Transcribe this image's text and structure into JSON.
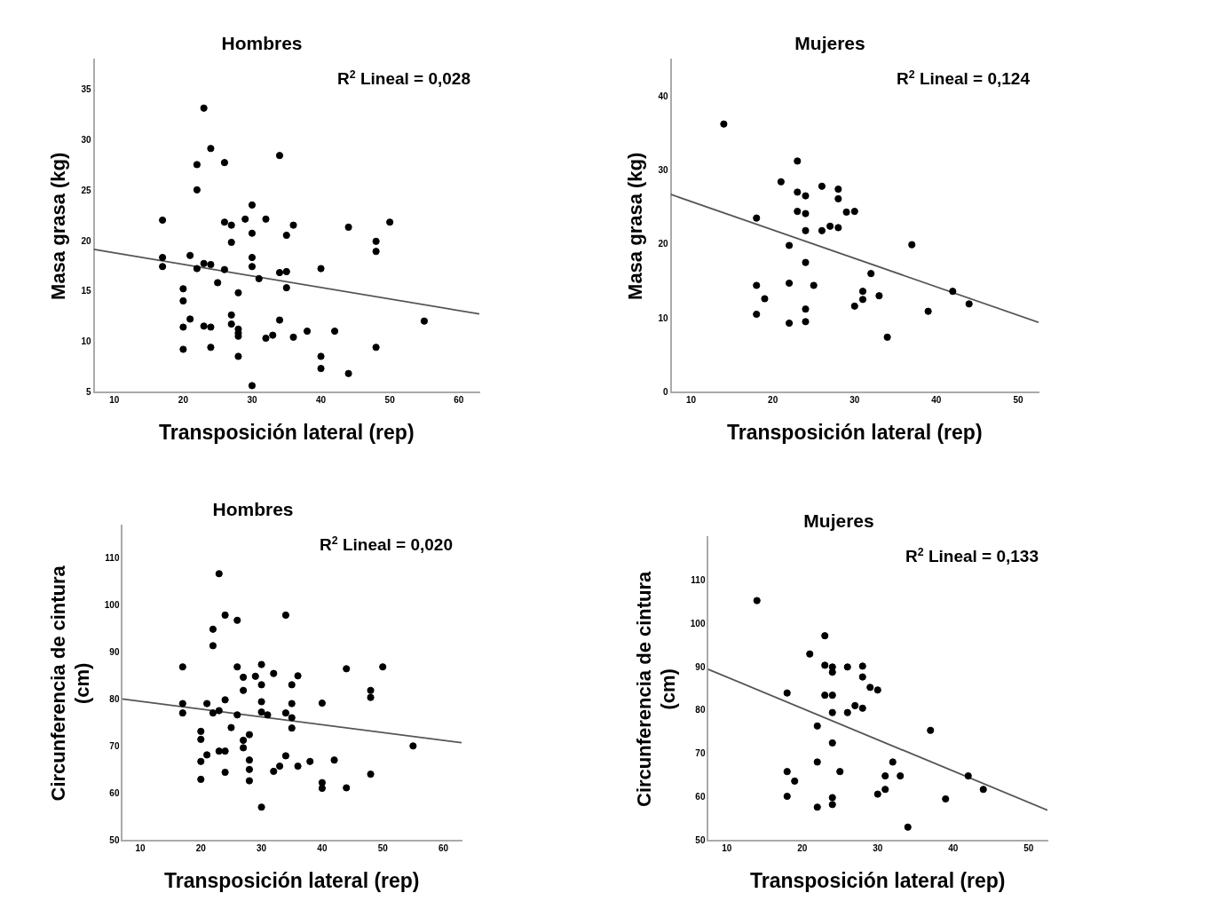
{
  "chart_data": [
    {
      "type": "scatter",
      "title": "Hombres",
      "xlabel": "Transposición lateral (rep)",
      "ylabel": "Masa grasa (kg)",
      "annotations": [
        "R$^{2}$ Lineal = 0,028"
      ],
      "xlim": [
        7,
        63
      ],
      "xticks": [
        10,
        20,
        30,
        40,
        50,
        60
      ],
      "ylim": [
        5,
        38
      ],
      "yticks": [
        5,
        10,
        15,
        20,
        25,
        30,
        35
      ],
      "grid": false,
      "legend": false,
      "series": [
        {
          "marker": "circle",
          "color": "#000000",
          "x": [
            17,
            17,
            17,
            20,
            20,
            20,
            20,
            21,
            21,
            22,
            22,
            22,
            23,
            23,
            23,
            24,
            24,
            24,
            24,
            25,
            26,
            26,
            26,
            27,
            27,
            27,
            27,
            28,
            28,
            28,
            28,
            28,
            29,
            30,
            30,
            30,
            30,
            30,
            31,
            32,
            32,
            33,
            34,
            34,
            34,
            35,
            35,
            35,
            36,
            36,
            38,
            40,
            40,
            40,
            42,
            44,
            44,
            48,
            48,
            48,
            50,
            55
          ],
          "values": [
            22.1,
            18.4,
            17.5,
            15.3,
            14.1,
            11.5,
            9.3,
            18.6,
            12.3,
            27.6,
            25.1,
            17.3,
            33.2,
            17.8,
            11.6,
            29.2,
            17.7,
            11.5,
            9.5,
            15.9,
            27.8,
            21.9,
            17.2,
            21.6,
            19.9,
            12.7,
            11.8,
            14.9,
            11.3,
            10.9,
            10.6,
            8.6,
            22.2,
            23.6,
            20.8,
            18.4,
            17.5,
            5.7,
            16.3,
            22.2,
            10.4,
            10.7,
            28.5,
            16.9,
            12.2,
            20.6,
            17.0,
            15.4,
            21.6,
            10.5,
            11.1,
            17.3,
            8.6,
            7.4,
            11.1,
            21.4,
            6.9,
            20.0,
            19.0,
            9.5,
            21.9,
            12.1
          ]
        },
        {
          "type": "line",
          "marker": "none",
          "color": "#555555",
          "x": [
            7,
            63
          ],
          "values": [
            19.2,
            12.8
          ]
        }
      ]
    },
    {
      "type": "scatter",
      "title": "Mujeres",
      "xlabel": "Transposición lateral (rep)",
      "ylabel": "Masa grasa (kg)",
      "annotations": [
        "R$^{2}$ Lineal = 0,124"
      ],
      "xlim": [
        7.5,
        52.5
      ],
      "xticks": [
        10,
        20,
        30,
        40,
        50
      ],
      "ylim": [
        0,
        45
      ],
      "yticks": [
        0,
        10,
        20,
        30,
        40
      ],
      "grid": false,
      "legend": false,
      "series": [
        {
          "marker": "circle",
          "color": "#000000",
          "x": [
            14,
            18,
            18,
            18,
            19,
            21,
            22,
            22,
            22,
            23,
            23,
            23,
            24,
            24,
            24,
            24,
            24,
            24,
            25,
            26,
            26,
            27,
            28,
            28,
            28,
            29,
            30,
            30,
            31,
            31,
            32,
            33,
            34,
            37,
            39,
            42,
            44
          ],
          "values": [
            36.3,
            23.6,
            14.5,
            10.6,
            12.7,
            28.5,
            19.9,
            14.8,
            9.4,
            31.3,
            27.1,
            24.5,
            26.6,
            24.2,
            21.9,
            17.6,
            11.3,
            9.6,
            14.5,
            27.9,
            21.9,
            22.5,
            27.5,
            26.2,
            22.3,
            24.4,
            24.5,
            11.7,
            13.7,
            12.6,
            16.1,
            13.1,
            7.5,
            20.0,
            11.0,
            13.7,
            12.0
          ]
        },
        {
          "type": "line",
          "marker": "none",
          "color": "#555555",
          "x": [
            7.5,
            52.5
          ],
          "values": [
            26.8,
            9.5
          ]
        }
      ]
    },
    {
      "type": "scatter",
      "title": "Hombres",
      "xlabel": "Transposición lateral (rep)",
      "ylabel": "Circunferencia de cintura (cm)",
      "annotations": [
        "R$^{2}$ Lineal = 0,020"
      ],
      "xlim": [
        7,
        63
      ],
      "xticks": [
        10,
        20,
        30,
        40,
        50,
        60
      ],
      "ylim": [
        50,
        117
      ],
      "yticks": [
        50,
        60,
        70,
        80,
        90,
        100,
        110
      ],
      "grid": false,
      "legend": false,
      "series": [
        {
          "marker": "circle",
          "color": "#000000",
          "x": [
            17,
            17,
            17,
            20,
            20,
            20,
            20,
            21,
            21,
            22,
            22,
            22,
            23,
            23,
            23,
            24,
            24,
            24,
            24,
            25,
            26,
            26,
            26,
            27,
            27,
            27,
            27,
            28,
            28,
            28,
            28,
            29,
            30,
            30,
            30,
            30,
            30,
            31,
            32,
            32,
            33,
            34,
            34,
            34,
            35,
            35,
            35,
            35,
            36,
            36,
            38,
            40,
            40,
            40,
            42,
            44,
            44,
            48,
            48,
            48,
            50,
            55
          ],
          "values": [
            87.0,
            79.2,
            77.2,
            73.3,
            71.6,
            66.9,
            63.1,
            68.3,
            79.2,
            91.5,
            95.0,
            77.2,
            106.8,
            77.7,
            69.1,
            98.0,
            80.0,
            69.1,
            64.6,
            74.1,
            96.9,
            87.0,
            76.8,
            84.8,
            82.0,
            71.4,
            69.8,
            72.6,
            67.2,
            65.2,
            62.8,
            85.0,
            87.5,
            83.2,
            79.6,
            77.4,
            57.2,
            76.8,
            85.6,
            64.8,
            65.9,
            98.0,
            77.2,
            68.1,
            83.2,
            79.2,
            76.2,
            74.0,
            85.1,
            65.9,
            66.9,
            79.3,
            62.4,
            61.2,
            67.2,
            86.6,
            61.3,
            82.0,
            80.5,
            64.2,
            87.0,
            70.2
          ]
        },
        {
          "type": "line",
          "marker": "none",
          "color": "#555555",
          "x": [
            7,
            63
          ],
          "values": [
            80.2,
            70.9
          ]
        }
      ]
    },
    {
      "type": "scatter",
      "title": "Mujeres",
      "xlabel": "Transposición lateral (rep)",
      "ylabel": "Circunferencia de cintura (cm)",
      "annotations": [
        "R$^{2}$ Lineal = 0,133"
      ],
      "xlim": [
        7.5,
        52.5
      ],
      "xticks": [
        10,
        20,
        30,
        40,
        50
      ],
      "ylim": [
        50,
        120
      ],
      "yticks": [
        50,
        60,
        70,
        80,
        90,
        100,
        110
      ],
      "grid": false,
      "legend": false,
      "series": [
        {
          "marker": "circle",
          "color": "#000000",
          "x": [
            14,
            18,
            18,
            18,
            19,
            21,
            22,
            22,
            22,
            23,
            23,
            23,
            24,
            24,
            24,
            24,
            24,
            24,
            24,
            25,
            26,
            26,
            27,
            28,
            28,
            28,
            29,
            30,
            30,
            31,
            31,
            32,
            33,
            34,
            37,
            39,
            42,
            44
          ],
          "values": [
            105.4,
            84.1,
            66.0,
            60.3,
            63.8,
            93.1,
            76.5,
            68.2,
            57.8,
            97.3,
            90.5,
            83.6,
            90.1,
            88.9,
            83.6,
            79.6,
            72.6,
            60.0,
            58.4,
            66.0,
            90.1,
            79.6,
            81.2,
            90.3,
            87.8,
            80.6,
            85.4,
            84.8,
            60.8,
            65.0,
            61.9,
            68.2,
            65.0,
            53.2,
            75.5,
            59.7,
            65.0,
            61.9
          ]
        },
        {
          "type": "line",
          "marker": "none",
          "color": "#555555",
          "x": [
            7.5,
            52.5
          ],
          "values": [
            89.6,
            57.1
          ]
        }
      ]
    }
  ]
}
